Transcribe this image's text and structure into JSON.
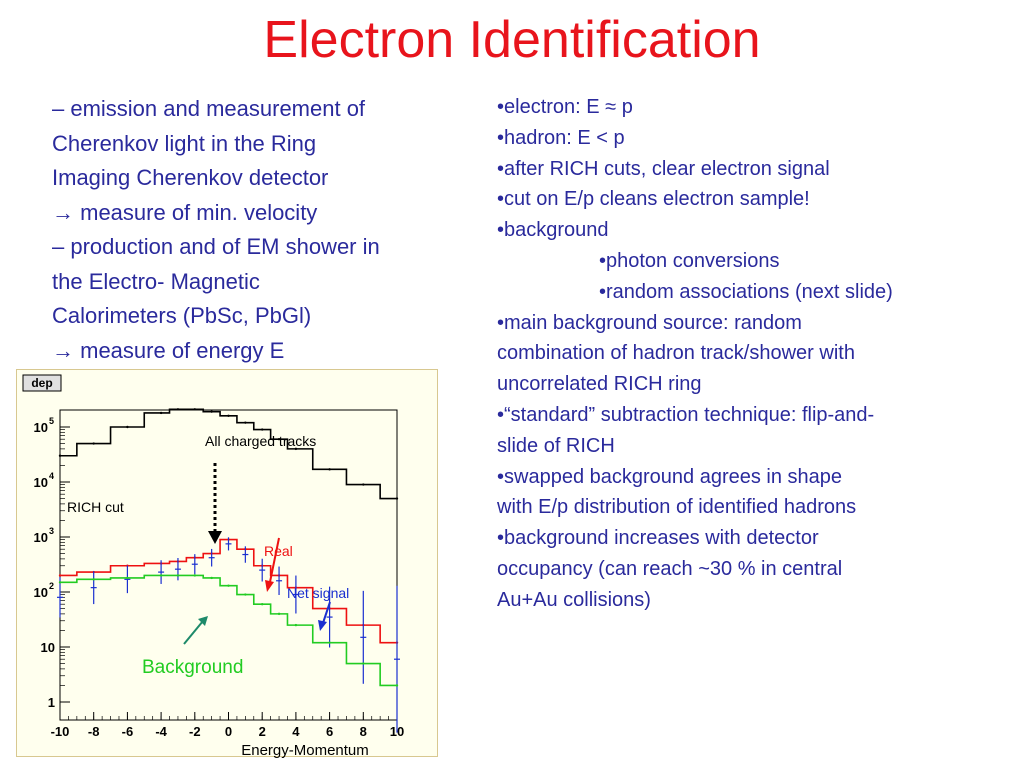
{
  "title": "Electron Identification",
  "left_lines": [
    "– emission and measurement of",
    "Cherenkov light in the Ring",
    "Imaging Cherenkov detector",
    "→ measure of min. velocity",
    "– production and of EM shower in",
    "the Electro- Magnetic",
    "Calorimeters (PbSc, PbGl)",
    "→ measure of energy E"
  ],
  "right_bullets": [
    {
      "text": "•electron: E ≈ p",
      "indent": 0
    },
    {
      "text": "•hadron: E < p",
      "indent": 0
    },
    {
      "text": "•after RICH cuts, clear electron signal",
      "indent": 0
    },
    {
      "text": "•cut on E/p cleans electron sample!",
      "indent": 0
    },
    {
      "text": "•background",
      "indent": 0
    },
    {
      "text": "•photon conversions",
      "indent": 1
    },
    {
      "text": "•random associations (next slide)",
      "indent": 1
    },
    {
      "text": "•main background source: random",
      "indent": 0
    },
    {
      "text": "combination of hadron track/shower with",
      "indent": 0
    },
    {
      "text": "uncorrelated RICH ring",
      "indent": 0
    },
    {
      "text": "•“standard” subtraction technique: flip-and-",
      "indent": 0
    },
    {
      "text": "slide of RICH",
      "indent": 0
    },
    {
      "text": "•swapped background agrees in shape",
      "indent": 0
    },
    {
      "text": "with E/p distribution of identified hadrons",
      "indent": 0
    },
    {
      "text": "•background increases with detector",
      "indent": 0
    },
    {
      "text": "occupancy (can reach ~30 % in central",
      "indent": 0
    },
    {
      "text": "Au+Au collisions)",
      "indent": 0
    }
  ],
  "chart_data": {
    "type": "line",
    "panel_label": "dep",
    "xlabel": "Energy-Momentum",
    "ylabel": "",
    "xlim": [
      -10,
      10
    ],
    "ylim": [
      1,
      500000
    ],
    "yscale": "log",
    "x_ticks": [
      "-10",
      "-8",
      "-6",
      "-4",
      "-2",
      "0",
      "2",
      "4",
      "6",
      "8",
      "10"
    ],
    "y_ticks": [
      {
        "base": "1",
        "exp": ""
      },
      {
        "base": "10",
        "exp": ""
      },
      {
        "base": "10",
        "exp": "2"
      },
      {
        "base": "10",
        "exp": "3"
      },
      {
        "base": "10",
        "exp": "4"
      },
      {
        "base": "10",
        "exp": "5"
      }
    ],
    "x": [
      -10,
      -8,
      -6,
      -4,
      -3,
      -2,
      -1,
      0,
      1,
      2,
      3,
      4,
      6,
      8,
      10
    ],
    "series": [
      {
        "name": "All charged tracks",
        "color": "#000000",
        "style": "step",
        "values": [
          30000,
          50000,
          100000,
          180000,
          210000,
          210000,
          190000,
          160000,
          120000,
          90000,
          60000,
          40000,
          17000,
          9000,
          5000
        ]
      },
      {
        "name": "Real",
        "color": "#ee1111",
        "style": "step",
        "values": [
          200,
          230,
          300,
          330,
          360,
          420,
          500,
          900,
          600,
          300,
          200,
          120,
          50,
          25,
          12
        ]
      },
      {
        "name": "Net signal",
        "color": "#1a2fd0",
        "style": "errorbar",
        "values": [
          80,
          120,
          170,
          230,
          260,
          320,
          420,
          750,
          480,
          250,
          160,
          90,
          35,
          15,
          6
        ]
      },
      {
        "name": "Background",
        "color": "#22cc22",
        "style": "step",
        "values": [
          150,
          170,
          180,
          200,
          200,
          200,
          180,
          130,
          90,
          60,
          40,
          25,
          12,
          5,
          2
        ]
      }
    ],
    "annotations": {
      "all_tracks": "All charged tracks",
      "rich_cut": "RICH cut",
      "real": "Real",
      "net_signal": "Net signal",
      "background": "Background"
    },
    "colors": {
      "real": "#ee1111",
      "net_signal": "#1a2fd0",
      "background": "#22cc22",
      "background_arrow": "#1e8a6a"
    }
  }
}
